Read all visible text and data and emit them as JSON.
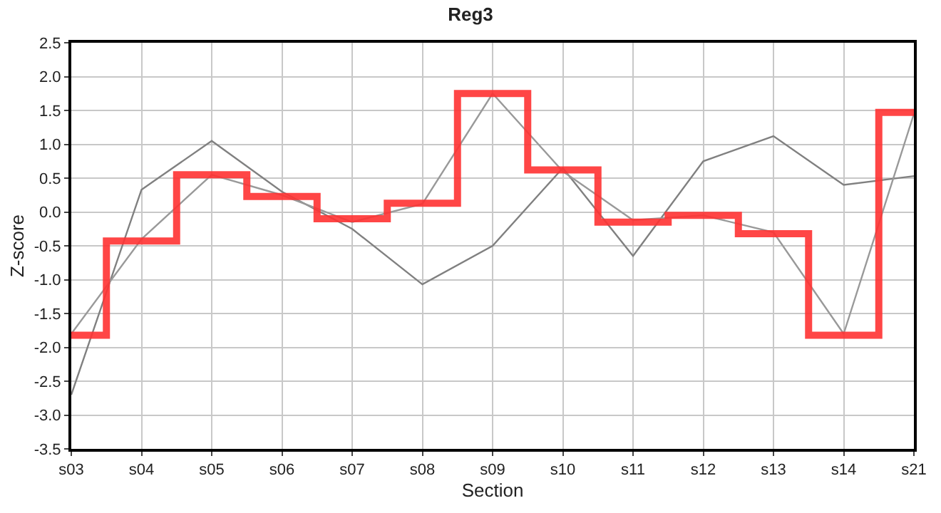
{
  "chart_data": {
    "type": "line",
    "title": "Reg3",
    "xlabel": "Section",
    "ylabel": "Z-score",
    "categories": [
      "s03",
      "s04",
      "s05",
      "s06",
      "s07",
      "s08",
      "s09",
      "s10",
      "s11",
      "s12",
      "s13",
      "s14",
      "s21"
    ],
    "series": [
      {
        "color": "#808080",
        "values": [
          -2.7,
          0.33,
          1.05,
          0.3,
          -0.25,
          -1.07,
          -0.5,
          0.65,
          -0.65,
          0.75,
          1.12,
          0.4,
          0.53
        ]
      },
      {
        "color": "#999999",
        "values": [
          -1.8,
          -0.4,
          0.55,
          0.25,
          -0.15,
          0.12,
          1.75,
          0.6,
          -0.12,
          -0.05,
          -0.3,
          -1.8,
          1.45
        ]
      },
      {
        "type": "step",
        "color": "#ff3333",
        "values": [
          -1.82,
          -0.43,
          0.55,
          0.23,
          -0.1,
          0.13,
          1.75,
          0.62,
          -0.15,
          -0.05,
          -0.32,
          -1.82,
          1.47
        ]
      }
    ],
    "ylim": [
      -3.5,
      2.5
    ],
    "yticks": [
      {
        "value": -3.5,
        "label": "-3.5"
      },
      {
        "value": -3,
        "label": "-3.0"
      },
      {
        "value": -2.5,
        "label": "-2.5"
      },
      {
        "value": -2,
        "label": "-2.0"
      },
      {
        "value": -1.5,
        "label": "-1.5"
      },
      {
        "value": -1,
        "label": "-1.0"
      },
      {
        "value": -0.5,
        "label": "-0.5"
      },
      {
        "value": 0,
        "label": "0.0"
      },
      {
        "value": 0.5,
        "label": "0.5"
      },
      {
        "value": 1,
        "label": "1.0"
      },
      {
        "value": 1.5,
        "label": "1.5"
      },
      {
        "value": 2,
        "label": "2.0"
      },
      {
        "value": 2.5,
        "label": "2.5"
      }
    ],
    "grid": true,
    "legend": false
  }
}
